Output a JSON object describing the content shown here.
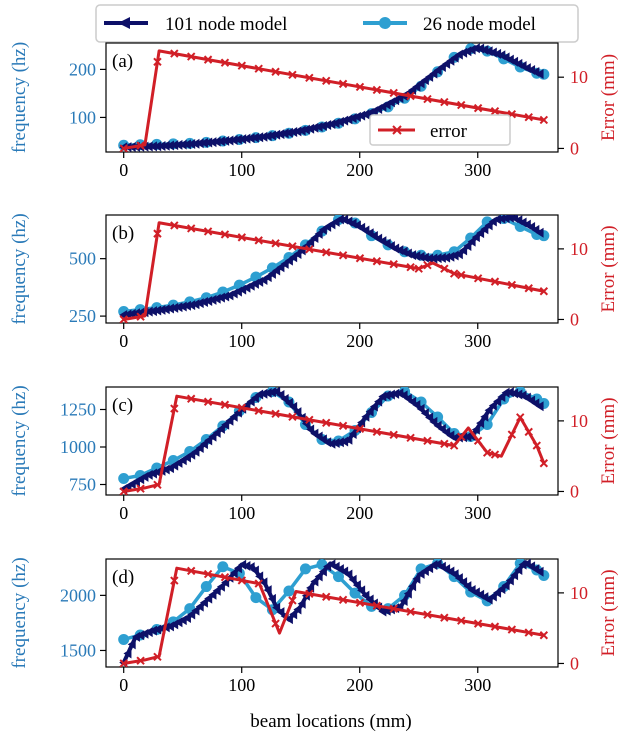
{
  "legend": {
    "entries": [
      {
        "label": "101 node model",
        "color": "#0d1068",
        "marker": "tri"
      },
      {
        "label": "26 node model",
        "color": "#2e9fd1",
        "marker": "circle"
      }
    ]
  },
  "colors": {
    "dense": "#0d1068",
    "coarse": "#2e9fd1",
    "error": "#d11f27",
    "left_axis": "#2a7ab8"
  },
  "xlabel": "beam locations (mm)",
  "chart_data": [
    {
      "type": "line",
      "panel": "(a)",
      "ylabel": "frequency (hz)",
      "y2label": "Error (mm)",
      "xlim": [
        -15,
        368
      ],
      "xticks": [
        0,
        100,
        200,
        300
      ],
      "ylim": [
        28,
        255
      ],
      "yticks": [
        100,
        200
      ],
      "y2lim": [
        -0.5,
        14.8
      ],
      "y2ticks": [
        0,
        10
      ],
      "error_legend": "error",
      "series_dense": {
        "name": "101 node model",
        "x": [
          0,
          30,
          60,
          90,
          120,
          150,
          180,
          210,
          240,
          270,
          285,
          300,
          320,
          340,
          355
        ],
        "y": [
          38,
          40,
          45,
          52,
          60,
          72,
          88,
          110,
          148,
          205,
          232,
          245,
          230,
          205,
          188
        ]
      },
      "series_coarse": {
        "name": "26 node model",
        "x": [
          0,
          14,
          28,
          42,
          56,
          70,
          84,
          98,
          112,
          126,
          140,
          154,
          168,
          182,
          196,
          210,
          224,
          238,
          252,
          266,
          280,
          294,
          308,
          322,
          336,
          350,
          356
        ],
        "y": [
          42,
          43,
          44,
          45,
          46,
          48,
          51,
          54,
          58,
          62,
          67,
          73,
          80,
          88,
          97,
          108,
          122,
          140,
          165,
          195,
          225,
          243,
          238,
          222,
          205,
          192,
          190
        ]
      },
      "series_error": {
        "name": "error",
        "x": [
          0,
          18,
          30,
          356
        ],
        "y": [
          0,
          0.5,
          13.7,
          4
        ]
      }
    },
    {
      "type": "line",
      "panel": "(b)",
      "ylabel": "frequency (hz)",
      "y2label": "Error (mm)",
      "xlim": [
        -15,
        368
      ],
      "xticks": [
        0,
        100,
        200,
        300
      ],
      "ylim": [
        220,
        690
      ],
      "yticks": [
        250,
        500
      ],
      "y2lim": [
        -0.5,
        14.8
      ],
      "y2ticks": [
        0,
        10
      ],
      "series_dense": {
        "name": "101 node model",
        "x": [
          0,
          30,
          60,
          90,
          120,
          150,
          170,
          185,
          200,
          215,
          230,
          245,
          260,
          275,
          285,
          300,
          315,
          330,
          345,
          355
        ],
        "y": [
          255,
          275,
          300,
          340,
          410,
          530,
          630,
          675,
          640,
          590,
          545,
          515,
          500,
          505,
          520,
          600,
          670,
          680,
          640,
          605
        ]
      },
      "series_coarse": {
        "name": "26 node model",
        "x": [
          0,
          14,
          28,
          42,
          56,
          70,
          84,
          98,
          112,
          126,
          140,
          154,
          168,
          182,
          196,
          210,
          224,
          238,
          252,
          266,
          280,
          294,
          308,
          322,
          336,
          350,
          356
        ],
        "y": [
          270,
          278,
          287,
          298,
          312,
          330,
          355,
          385,
          420,
          460,
          505,
          560,
          620,
          670,
          655,
          600,
          560,
          530,
          515,
          515,
          530,
          590,
          660,
          675,
          640,
          605,
          600
        ]
      },
      "series_error": {
        "name": "error",
        "x": [
          0,
          18,
          30,
          250,
          262,
          280,
          356
        ],
        "y": [
          0,
          0.5,
          13.7,
          7.2,
          8,
          6.5,
          4
        ]
      }
    },
    {
      "type": "line",
      "panel": "(c)",
      "ylabel": "frequency (hz)",
      "y2label": "Error (mm)",
      "xlim": [
        -15,
        368
      ],
      "xticks": [
        0,
        100,
        200,
        300
      ],
      "ylim": [
        680,
        1400
      ],
      "yticks": [
        750,
        1000,
        1250
      ],
      "y2lim": [
        -0.5,
        14.8
      ],
      "y2ticks": [
        0,
        10
      ],
      "series_dense": {
        "name": "101 node model",
        "x": [
          0,
          20,
          40,
          60,
          80,
          100,
          115,
          130,
          145,
          160,
          175,
          190,
          205,
          220,
          235,
          250,
          265,
          280,
          295,
          310,
          325,
          340,
          355
        ],
        "y": [
          720,
          810,
          860,
          960,
          1100,
          1250,
          1350,
          1370,
          1260,
          1100,
          1020,
          1040,
          1200,
          1340,
          1360,
          1270,
          1150,
          1060,
          1070,
          1250,
          1370,
          1340,
          1260
        ]
      },
      "series_coarse": {
        "name": "26 node model",
        "x": [
          0,
          14,
          28,
          42,
          56,
          70,
          84,
          98,
          112,
          126,
          140,
          154,
          168,
          182,
          196,
          210,
          224,
          238,
          252,
          266,
          280,
          294,
          308,
          322,
          336,
          350,
          356
        ],
        "y": [
          790,
          810,
          860,
          910,
          970,
          1050,
          1140,
          1240,
          1330,
          1370,
          1300,
          1150,
          1050,
          1040,
          1110,
          1230,
          1340,
          1370,
          1300,
          1200,
          1090,
          1070,
          1150,
          1320,
          1370,
          1320,
          1290
        ]
      },
      "series_error": {
        "name": "error",
        "x": [
          0,
          18,
          30,
          45,
          280,
          292,
          308,
          320,
          336,
          350,
          356
        ],
        "y": [
          0,
          0.5,
          1,
          13.5,
          6.5,
          9,
          5.5,
          5,
          10.5,
          6.5,
          4
        ]
      }
    },
    {
      "type": "line",
      "panel": "(d)",
      "ylabel": "frequency (hz)",
      "y2label": "Error (mm)",
      "xlim": [
        -15,
        368
      ],
      "xticks": [
        0,
        100,
        200,
        300
      ],
      "ylim": [
        1350,
        2330
      ],
      "yticks": [
        1500,
        2000
      ],
      "y2lim": [
        -0.5,
        14.8
      ],
      "y2ticks": [
        0,
        10
      ],
      "series_dense": {
        "name": "101 node model",
        "x": [
          0,
          10,
          25,
          40,
          55,
          70,
          85,
          100,
          110,
          120,
          130,
          140,
          150,
          160,
          175,
          190,
          205,
          220,
          235,
          250,
          265,
          280,
          295,
          310,
          325,
          340,
          355
        ],
        "y": [
          1390,
          1620,
          1680,
          1720,
          1800,
          1950,
          2100,
          2280,
          2250,
          2100,
          1880,
          1780,
          1900,
          2100,
          2290,
          2200,
          2000,
          1850,
          1900,
          2180,
          2290,
          2200,
          2050,
          1960,
          2100,
          2300,
          2200
        ]
      },
      "series_coarse": {
        "name": "26 node model",
        "x": [
          0,
          14,
          28,
          42,
          56,
          70,
          84,
          98,
          112,
          126,
          140,
          154,
          168,
          182,
          196,
          210,
          224,
          238,
          252,
          266,
          280,
          294,
          308,
          322,
          336,
          350,
          356
        ],
        "y": [
          1600,
          1640,
          1690,
          1760,
          1880,
          2080,
          2260,
          2200,
          1980,
          1870,
          2040,
          2240,
          2280,
          2170,
          2020,
          1900,
          1880,
          2000,
          2240,
          2290,
          2170,
          2030,
          1950,
          2080,
          2290,
          2230,
          2180
        ]
      },
      "series_error": {
        "name": "error",
        "x": [
          0,
          18,
          30,
          45,
          115,
          132,
          146,
          356
        ],
        "y": [
          0,
          0.5,
          1,
          13.5,
          11.3,
          4.3,
          10.2,
          4
        ]
      }
    }
  ]
}
